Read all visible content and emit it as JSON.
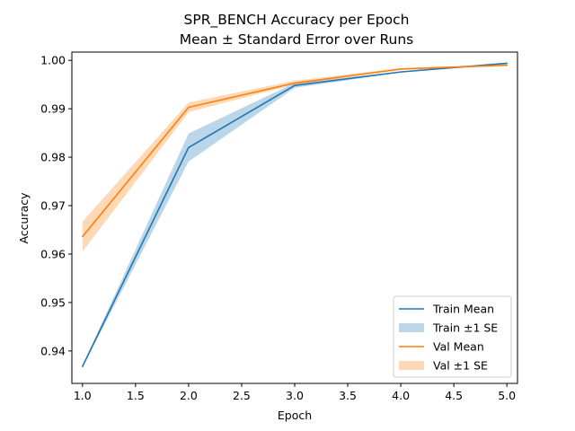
{
  "chart_data": {
    "type": "line",
    "title": "SPR_BENCH Accuracy per Epoch",
    "subtitle": "Mean ± Standard Error over Runs",
    "xlabel": "Epoch",
    "ylabel": "Accuracy",
    "xlim": [
      0.9,
      5.1
    ],
    "ylim": [
      0.9333,
      1.0017
    ],
    "x_ticks": [
      1.0,
      1.5,
      2.0,
      2.5,
      3.0,
      3.5,
      4.0,
      4.5,
      5.0
    ],
    "x_tick_labels": [
      "1.0",
      "1.5",
      "2.0",
      "2.5",
      "3.0",
      "3.5",
      "4.0",
      "4.5",
      "5.0"
    ],
    "y_ticks": [
      0.94,
      0.95,
      0.96,
      0.97,
      0.98,
      0.99,
      1.0
    ],
    "y_tick_labels": [
      "0.94",
      "0.95",
      "0.96",
      "0.97",
      "0.98",
      "0.99",
      "1.00"
    ],
    "grid": false,
    "legend_position": "bottom-right",
    "x": [
      1,
      2,
      3,
      4,
      5
    ],
    "series": [
      {
        "name": "Train Mean",
        "band_name": "Train ±1 SE",
        "color": "#1f77b4",
        "values": [
          0.9368,
          0.982,
          0.9948,
          0.9976,
          0.9994
        ],
        "lower": [
          0.9366,
          0.9791,
          0.9943,
          0.9975,
          0.9993
        ],
        "upper": [
          0.937,
          0.9849,
          0.9953,
          0.9977,
          0.9995
        ]
      },
      {
        "name": "Val Mean",
        "band_name": "Val ±1 SE",
        "color": "#ff7f0e",
        "values": [
          0.9636,
          0.9903,
          0.9953,
          0.9982,
          0.999
        ],
        "lower": [
          0.9605,
          0.9893,
          0.995,
          0.998,
          0.9988
        ],
        "upper": [
          0.9667,
          0.9913,
          0.9958,
          0.9984,
          0.9992
        ]
      }
    ],
    "legend": [
      "Train Mean",
      "Train ±1 SE",
      "Val Mean",
      "Val ±1 SE"
    ]
  }
}
